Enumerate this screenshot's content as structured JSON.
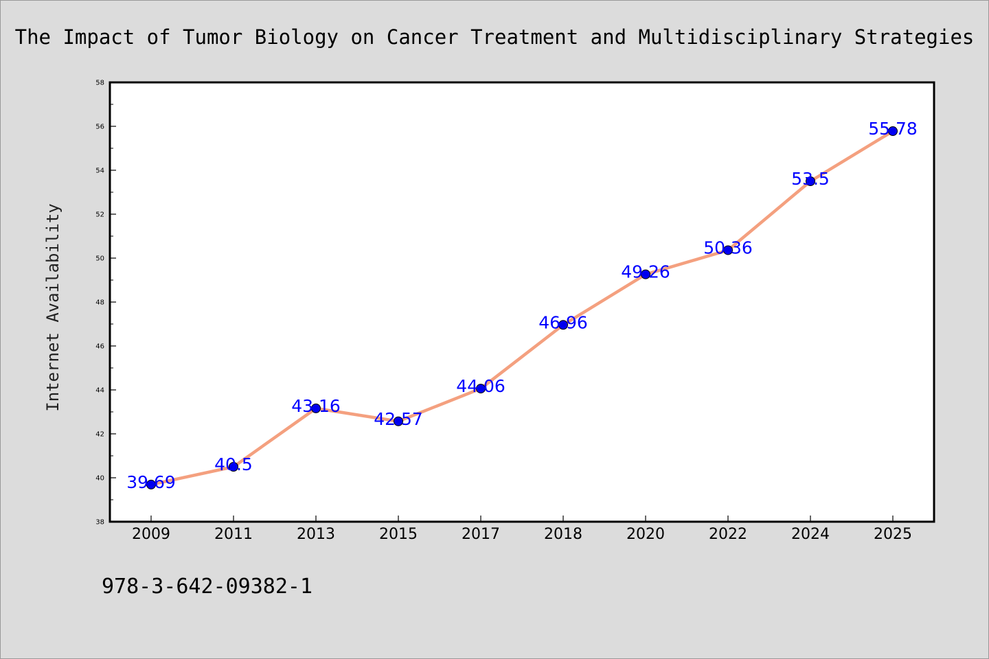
{
  "chart_data": {
    "type": "line",
    "title": "The Impact of Tumor Biology on Cancer Treatment and Multidisciplinary Strategies",
    "xlabel": "",
    "ylabel": "Internet Availability",
    "categories": [
      "2009",
      "2011",
      "2013",
      "2015",
      "2017",
      "2018",
      "2020",
      "2022",
      "2024",
      "2025"
    ],
    "series": [
      {
        "values": [
          39.69,
          40.5,
          43.16,
          42.57,
          44.06,
          46.96,
          49.26,
          50.36,
          53.5,
          55.78
        ],
        "data_labels": [
          "39.69",
          "40.5",
          "43.16",
          "42.57",
          "44.06",
          "46.96",
          "49.26",
          "50.36",
          "53.5",
          "55.78"
        ],
        "line_color": "#f4a07f",
        "marker_color": "#0000ee"
      }
    ],
    "ylim": [
      38,
      58
    ],
    "yticks": [
      "38",
      "40",
      "42",
      "44",
      "46",
      "48",
      "50",
      "52",
      "54",
      "56",
      "58"
    ],
    "grid": false,
    "legend": "none"
  },
  "annotation": "978-3-642-09382-1",
  "colors": {
    "background": "#dcdcdc",
    "plot_background": "#ffffff",
    "data_label": "#0000ff"
  }
}
